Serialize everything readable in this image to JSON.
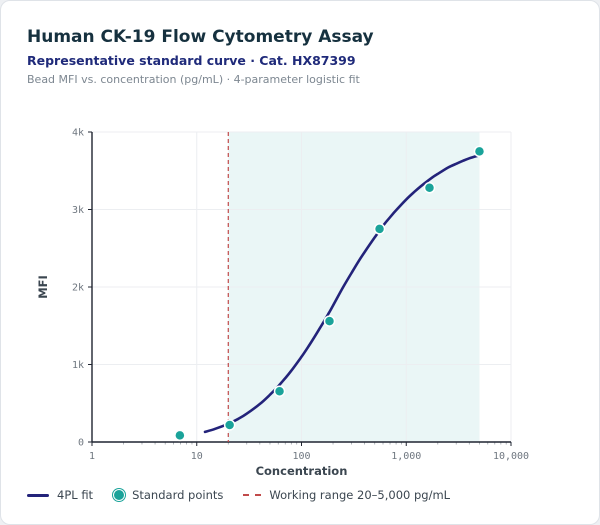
{
  "header": {
    "title": "Human CK-19 Flow Cytometry Assay",
    "subtitle": "Representative standard curve · Cat. HX87399",
    "caption": "Bead MFI vs. concentration (pg/mL) · 4-parameter logistic fit"
  },
  "legend": {
    "fit_label": "4PL fit",
    "points_label": "Standard points",
    "range_label": "Working range 20–5,000 pg/mL"
  },
  "colors": {
    "curve": "#23237a",
    "points": "#1aa39a",
    "range_fill": "#eaf6f6",
    "cutoff_line": "#c14a4a",
    "grid": "#eceef1"
  },
  "chart_data": {
    "type": "scatter",
    "x_scale": "log",
    "xlabel": "Concentration",
    "ylabel": "MFI",
    "xlim": [
      1,
      10000
    ],
    "ylim": [
      0,
      4000
    ],
    "x_ticks": [
      1,
      10,
      100,
      1000,
      10000
    ],
    "x_tick_labels": [
      "1",
      "10",
      "100",
      "1,000",
      "10,000"
    ],
    "y_ticks": [
      0,
      1000,
      2000,
      3000,
      4000
    ],
    "y_tick_labels": [
      "0",
      "1k",
      "2k",
      "3k",
      "4k"
    ],
    "grid": true,
    "legend_position": "bottom",
    "working_range": [
      20,
      5000
    ],
    "series": [
      {
        "name": "Standard points",
        "type": "scatter",
        "x": [
          6.9,
          20.6,
          61.7,
          185,
          556,
          1667,
          5000
        ],
        "y": [
          85,
          220,
          655,
          1560,
          2750,
          3280,
          3750
        ]
      },
      {
        "name": "4PL fit",
        "type": "line",
        "x": [
          12,
          15,
          20,
          25,
          30,
          40,
          50,
          60,
          70,
          80,
          100,
          120,
          150,
          180,
          200,
          250,
          300,
          350,
          400,
          500,
          600,
          700,
          800,
          1000,
          1200,
          1500,
          1800,
          2000,
          2500,
          3000,
          3500,
          4000,
          5000
        ],
        "y": [
          130,
          170,
          235,
          300,
          365,
          490,
          610,
          720,
          825,
          920,
          1100,
          1260,
          1470,
          1650,
          1760,
          2000,
          2180,
          2330,
          2450,
          2640,
          2790,
          2900,
          2990,
          3130,
          3230,
          3340,
          3420,
          3460,
          3540,
          3590,
          3630,
          3660,
          3700
        ]
      }
    ]
  }
}
